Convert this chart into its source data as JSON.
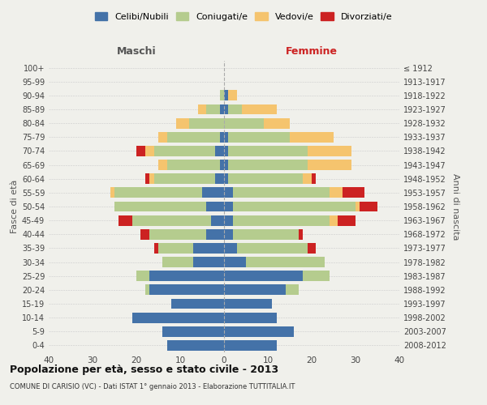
{
  "age_groups_bottom_to_top": [
    "0-4",
    "5-9",
    "10-14",
    "15-19",
    "20-24",
    "25-29",
    "30-34",
    "35-39",
    "40-44",
    "45-49",
    "50-54",
    "55-59",
    "60-64",
    "65-69",
    "70-74",
    "75-79",
    "80-84",
    "85-89",
    "90-94",
    "95-99",
    "100+"
  ],
  "birth_years_bottom_to_top": [
    "2008-2012",
    "2003-2007",
    "1998-2002",
    "1993-1997",
    "1988-1992",
    "1983-1987",
    "1978-1982",
    "1973-1977",
    "1968-1972",
    "1963-1967",
    "1958-1962",
    "1953-1957",
    "1948-1952",
    "1943-1947",
    "1938-1942",
    "1933-1937",
    "1928-1932",
    "1923-1927",
    "1918-1922",
    "1913-1917",
    "≤ 1912"
  ],
  "maschi": {
    "celibe": [
      13,
      14,
      21,
      12,
      17,
      17,
      7,
      7,
      4,
      3,
      4,
      5,
      2,
      1,
      2,
      1,
      0,
      1,
      0,
      0,
      0
    ],
    "coniugato": [
      0,
      0,
      0,
      0,
      1,
      3,
      7,
      8,
      13,
      18,
      21,
      20,
      14,
      12,
      14,
      12,
      8,
      3,
      1,
      0,
      0
    ],
    "vedovo": [
      0,
      0,
      0,
      0,
      0,
      0,
      0,
      0,
      0,
      0,
      0,
      1,
      1,
      2,
      2,
      2,
      3,
      2,
      0,
      0,
      0
    ],
    "divorziato": [
      0,
      0,
      0,
      0,
      0,
      0,
      0,
      1,
      2,
      3,
      0,
      0,
      1,
      0,
      2,
      0,
      0,
      0,
      0,
      0,
      0
    ]
  },
  "femmine": {
    "nubile": [
      12,
      16,
      12,
      11,
      14,
      18,
      5,
      3,
      2,
      2,
      2,
      2,
      1,
      1,
      1,
      1,
      0,
      1,
      1,
      0,
      0
    ],
    "coniugata": [
      0,
      0,
      0,
      0,
      3,
      6,
      18,
      16,
      15,
      22,
      28,
      22,
      17,
      18,
      18,
      14,
      9,
      3,
      0,
      0,
      0
    ],
    "vedova": [
      0,
      0,
      0,
      0,
      0,
      0,
      0,
      0,
      0,
      2,
      1,
      3,
      2,
      10,
      10,
      10,
      6,
      8,
      2,
      0,
      0
    ],
    "divorziata": [
      0,
      0,
      0,
      0,
      0,
      0,
      0,
      2,
      1,
      4,
      4,
      5,
      1,
      0,
      0,
      0,
      0,
      0,
      0,
      0,
      0
    ]
  },
  "colors": {
    "celibe": "#4472a8",
    "coniugato": "#b5cc8e",
    "vedovo": "#f5c46e",
    "divorziato": "#cc2222"
  },
  "xlim": 40,
  "title": "Popolazione per età, sesso e stato civile - 2013",
  "subtitle": "COMUNE DI CARISIO (VC) - Dati ISTAT 1° gennaio 2013 - Elaborazione TUTTITALIA.IT",
  "ylabel_left": "Fasce di età",
  "ylabel_right": "Anni di nascita",
  "xlabel_left": "Maschi",
  "xlabel_right": "Femmine",
  "legend_labels": [
    "Celibi/Nubili",
    "Coniugati/e",
    "Vedovi/e",
    "Divorziati/e"
  ],
  "bg_color": "#f0f0eb"
}
